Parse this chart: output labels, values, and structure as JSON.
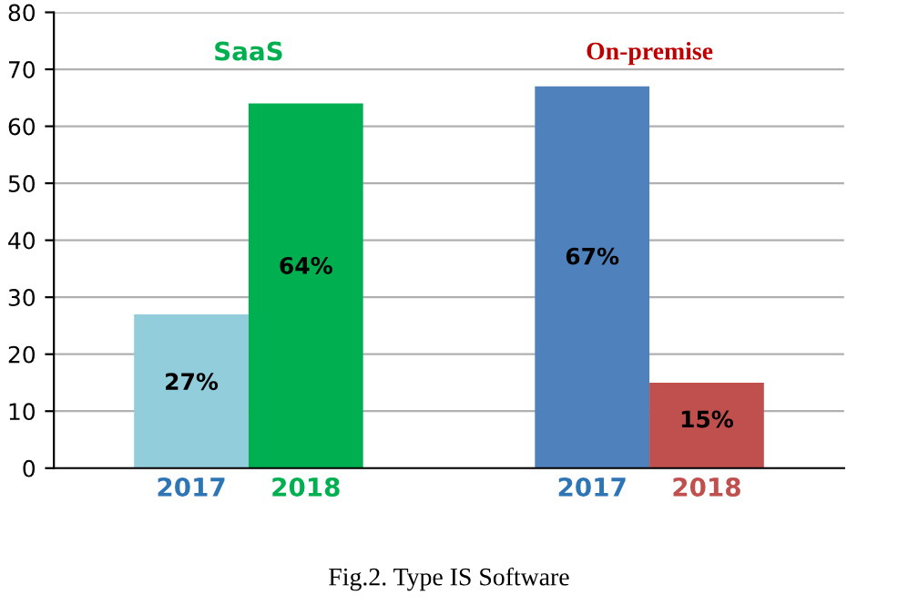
{
  "chart_data": {
    "type": "bar",
    "categories": [
      "2017",
      "2018",
      "2017",
      "2018"
    ],
    "values": [
      27,
      64,
      67,
      15
    ],
    "colors": [
      "#92cddc",
      "#00b050",
      "#4f81bd",
      "#c0504d"
    ],
    "value_labels": [
      "27%",
      "64%",
      "67%",
      "15%"
    ],
    "ylim": [
      0,
      80
    ],
    "yticks": [
      0,
      10,
      20,
      30,
      40,
      50,
      60,
      70,
      80
    ],
    "grid": "y",
    "annotations": [
      "SaaS",
      "On-premise",
      "Fig.2. Type IS Software"
    ]
  }
}
